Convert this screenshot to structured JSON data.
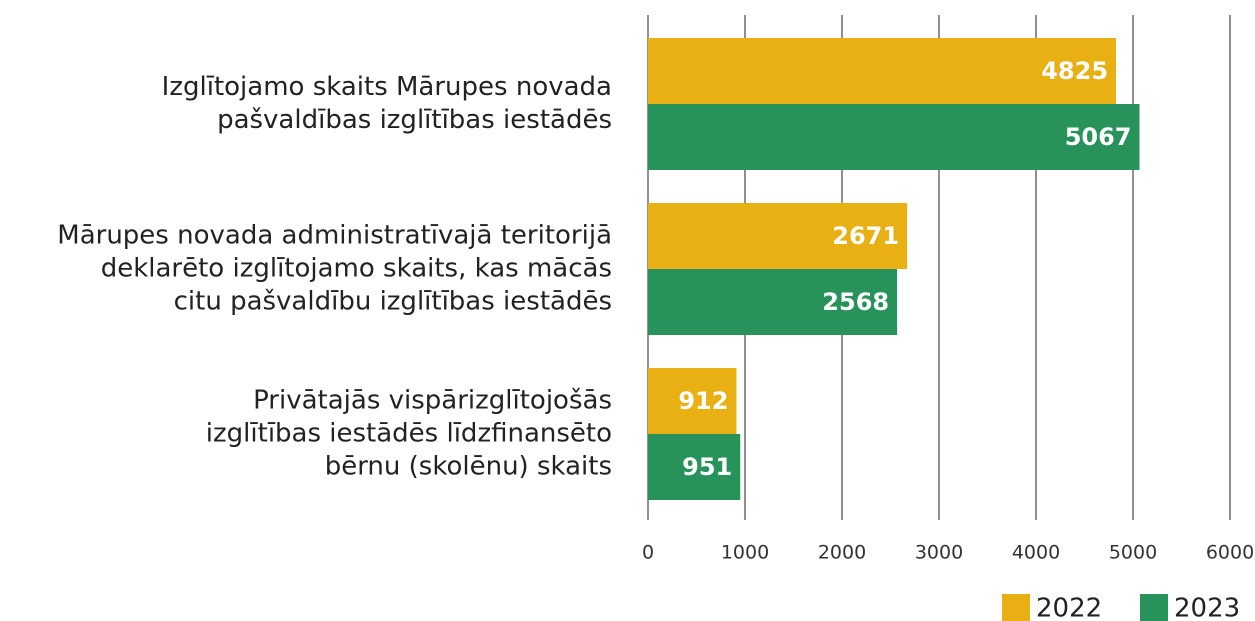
{
  "chart_data": {
    "type": "barh",
    "categories": [
      [
        "Izglītojamo skaits Mārupes novada",
        "pašvaldības izglītības iestādēs"
      ],
      [
        "Mārupes novada administratīvajā teritorijā",
        "deklarēto izglītojamo skaits, kas mācās",
        "citu pašvaldību izglītības iestādēs"
      ],
      [
        "Privātajās vispārizglītojošās",
        "izglītības iestādēs līdzfinansēto",
        "bērnu (skolēnu) skaits"
      ]
    ],
    "series": [
      {
        "name": "2022",
        "color": "#e8b012",
        "values": [
          4825,
          2671,
          912
        ]
      },
      {
        "name": "2023",
        "color": "#27925a",
        "values": [
          5067,
          2568,
          951
        ]
      }
    ],
    "xlim": [
      0,
      6000
    ],
    "xticks": [
      0,
      1000,
      2000,
      3000,
      4000,
      5000,
      6000
    ],
    "grid": true,
    "legend": "bottom-right"
  }
}
